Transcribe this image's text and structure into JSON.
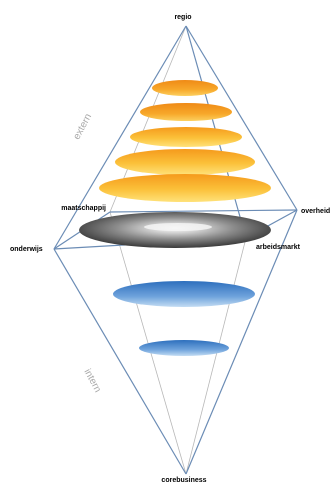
{
  "diagram": {
    "vertices": {
      "top": "regio",
      "bottom": "corebusiness",
      "left": "onderwijs",
      "right": "overheid",
      "back_left": "maatschappij",
      "front_right": "arbeidsmarkt"
    },
    "zones": {
      "upper": "extern",
      "lower": "intern"
    },
    "layers": {
      "upper_count": 5,
      "middle_count": 1,
      "lower_count": 2
    },
    "colors": {
      "edge": "#6b8cb5",
      "thin_edge": "#b8b8b8",
      "upper_layer": "#f7a21b",
      "middle_layer": "#555555",
      "lower_layer": "#3d7fc8",
      "zone_text": "#a9a9a9",
      "vertex_text": "#000000"
    }
  }
}
